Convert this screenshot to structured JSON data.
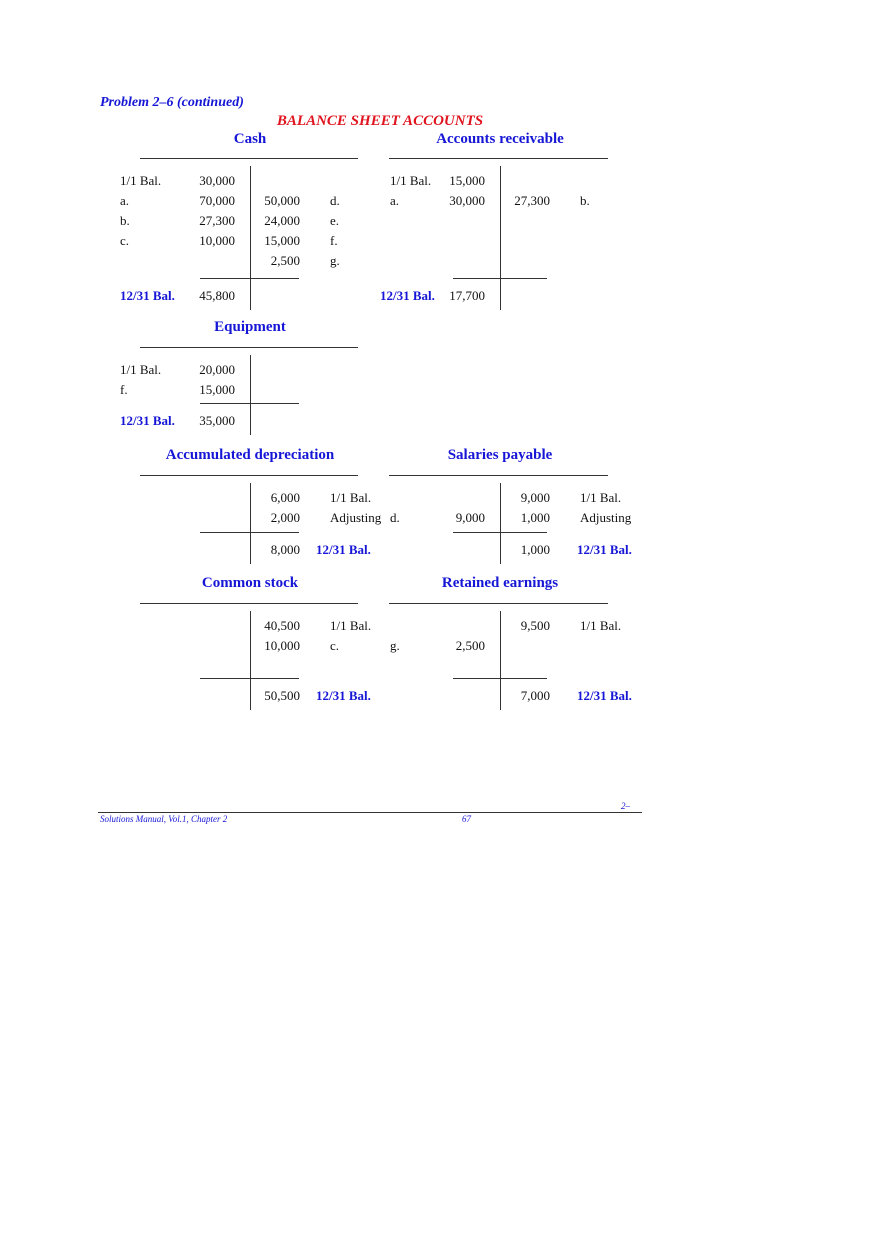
{
  "header": {
    "problem": "Problem 2–6 (continued)",
    "section": "BALANCE SHEET ACCOUNTS"
  },
  "accounts": [
    {
      "title": "Cash",
      "debit": [
        {
          "label": "1/1 Bal.",
          "amount": "30,000"
        },
        {
          "label": "a.",
          "amount": "70,000"
        },
        {
          "label": "b.",
          "amount": "27,300"
        },
        {
          "label": "c.",
          "amount": "10,000"
        }
      ],
      "credit": [
        null,
        {
          "amount": "50,000",
          "label": "d."
        },
        {
          "amount": "24,000",
          "label": "e."
        },
        {
          "amount": "15,000",
          "label": "f."
        },
        {
          "amount": "2,500",
          "label": "g."
        }
      ],
      "balance": {
        "side": "debit",
        "label": "12/31 Bal.",
        "amount": "45,800"
      }
    },
    {
      "title": "Accounts receivable",
      "debit": [
        {
          "label": "1/1 Bal.",
          "amount": "15,000"
        },
        {
          "label": "a.",
          "amount": "30,000"
        }
      ],
      "credit": [
        null,
        {
          "amount": "27,300",
          "label": "b."
        }
      ],
      "balance": {
        "side": "debit",
        "label": "12/31 Bal.",
        "amount": "17,700"
      }
    },
    {
      "title": "Equipment",
      "debit": [
        {
          "label": "1/1 Bal.",
          "amount": "20,000"
        },
        {
          "label": "f.",
          "amount": "15,000"
        }
      ],
      "credit": [],
      "balance": {
        "side": "debit",
        "label": "12/31 Bal.",
        "amount": "35,000"
      }
    },
    {
      "title": "Accumulated depreciation",
      "debit": [],
      "credit": [
        {
          "amount": "6,000",
          "label": "1/1 Bal."
        },
        {
          "amount": "2,000",
          "label": "Adjusting"
        }
      ],
      "balance": {
        "side": "credit",
        "label": "12/31 Bal.",
        "amount": "8,000"
      }
    },
    {
      "title": "Salaries payable",
      "debit": [
        null,
        {
          "label": "d.",
          "amount": "9,000"
        }
      ],
      "credit": [
        {
          "amount": "9,000",
          "label": "1/1 Bal."
        },
        {
          "amount": "1,000",
          "label": "Adjusting"
        }
      ],
      "balance": {
        "side": "credit",
        "label": "12/31 Bal.",
        "amount": "1,000"
      }
    },
    {
      "title": "Common stock",
      "debit": [],
      "credit": [
        {
          "amount": "40,500",
          "label": "1/1 Bal."
        },
        {
          "amount": "10,000",
          "label": "c."
        }
      ],
      "balance": {
        "side": "credit",
        "label": "12/31 Bal.",
        "amount": "50,500"
      }
    },
    {
      "title": "Retained earnings",
      "debit": [
        null,
        {
          "label": "g.",
          "amount": "2,500"
        }
      ],
      "credit": [
        {
          "amount": "9,500",
          "label": "1/1 Bal."
        }
      ],
      "balance": {
        "side": "credit",
        "label": "12/31 Bal.",
        "amount": "7,000"
      }
    }
  ],
  "footer": {
    "chapter_mark": "2–",
    "source": "Solutions Manual, Vol.1, Chapter 2",
    "page_number": "67"
  },
  "colors": {
    "heading_blue": "#1616d6",
    "section_red": "#e0141e"
  }
}
